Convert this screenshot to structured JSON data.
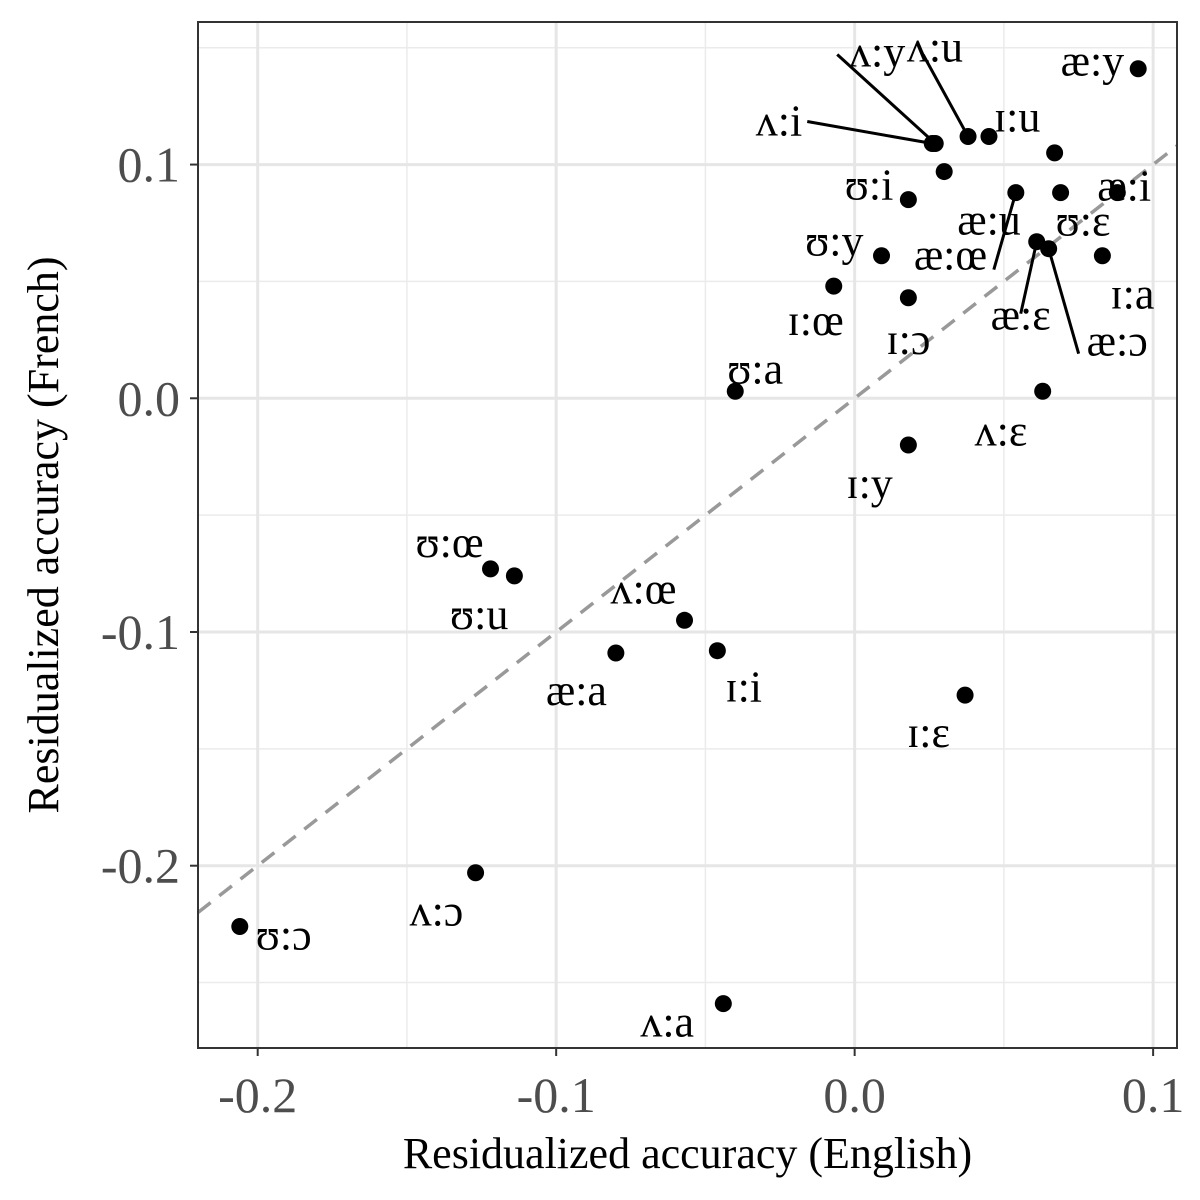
{
  "chart_data": {
    "type": "scatter",
    "title": "",
    "xlabel": "Residualized accuracy (English)",
    "ylabel": "Residualized accuracy (French)",
    "xlim": [
      -0.22,
      0.108
    ],
    "ylim": [
      -0.278,
      0.161
    ],
    "xticks": [
      -0.2,
      -0.1,
      0.0,
      0.1
    ],
    "xtick_labels": [
      "-0.2",
      "-0.1",
      "0.0",
      "0.1"
    ],
    "yticks": [
      -0.2,
      -0.1,
      0.0,
      0.1
    ],
    "ytick_labels": [
      "-0.2",
      "-0.1",
      "0.0",
      "0.1"
    ],
    "grid": true,
    "reference_line": {
      "type": "identity",
      "style": "dashed",
      "color": "#999999"
    },
    "points": [
      {
        "label": "ʌ:y",
        "x": 0.027,
        "y": 0.109
      },
      {
        "label": "ʌ:u",
        "x": 0.038,
        "y": 0.112
      },
      {
        "label": "ʌ:i",
        "x": 0.026,
        "y": 0.109
      },
      {
        "label": "ɪ:u",
        "x": 0.045,
        "y": 0.112
      },
      {
        "label": "æ:y",
        "x": 0.095,
        "y": 0.141
      },
      {
        "label": "æ:i",
        "x": 0.088,
        "y": 0.088
      },
      {
        "label": "ʊ:i",
        "x": 0.018,
        "y": 0.085
      },
      {
        "label": "æ:u",
        "x": 0.054,
        "y": 0.088
      },
      {
        "label": "ʊ:ɛ",
        "x": 0.069,
        "y": 0.088
      },
      {
        "label": "ɪ:a",
        "x": 0.083,
        "y": 0.061
      },
      {
        "label": "ʊ:y",
        "x": 0.009,
        "y": 0.061
      },
      {
        "label": "æ:œ",
        "x": 0.03,
        "y": 0.097
      },
      {
        "label": "ɪ:œ",
        "x": -0.007,
        "y": 0.048
      },
      {
        "label": "ɪ:ɔ",
        "x": 0.018,
        "y": 0.043
      },
      {
        "label": "æ:ɛ",
        "x": 0.061,
        "y": 0.067
      },
      {
        "label": "æ:ɔ",
        "x": 0.065,
        "y": 0.064
      },
      {
        "label": "ʊ:a",
        "x": -0.04,
        "y": 0.003
      },
      {
        "label": "ʌ:ɛ",
        "x": 0.063,
        "y": 0.003
      },
      {
        "label": "ɪ:y",
        "x": 0.018,
        "y": -0.02
      },
      {
        "label": "ʊ:œ",
        "x": -0.122,
        "y": -0.073
      },
      {
        "label": "ʊ:u",
        "x": -0.114,
        "y": -0.076
      },
      {
        "label": "ʌ:œ",
        "x": -0.057,
        "y": -0.095
      },
      {
        "label": "æ:a",
        "x": -0.08,
        "y": -0.109
      },
      {
        "label": "ɪ:i",
        "x": -0.046,
        "y": -0.108
      },
      {
        "label": "ɪ:ɛ",
        "x": 0.037,
        "y": -0.127
      },
      {
        "label": "ʌ:ɔ",
        "x": -0.127,
        "y": -0.203
      },
      {
        "label": "ʊ:ɔ",
        "x": -0.206,
        "y": -0.226
      },
      {
        "label": "ʌ:a",
        "x": -0.044,
        "y": -0.259
      }
    ],
    "extra_points": [
      {
        "x": 0.067,
        "y": 0.105
      }
    ]
  }
}
